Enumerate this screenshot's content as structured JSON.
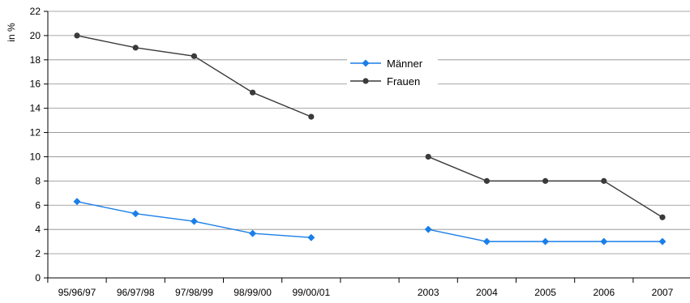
{
  "chart_data": {
    "type": "line",
    "ylabel": "in %",
    "ylim": [
      0,
      22
    ],
    "y_ticks": [
      0,
      2,
      4,
      6,
      8,
      10,
      12,
      14,
      16,
      18,
      20,
      22
    ],
    "categories": [
      "95/96/97",
      "96/97/98",
      "97/98/99",
      "98/99/00",
      "99/00/01",
      "",
      "2003",
      "2004",
      "2005",
      "2006",
      "2007"
    ],
    "grid": "horizontal",
    "legend_position": "top-center",
    "series": [
      {
        "name": "Männer",
        "color": "#1a7fe8",
        "marker": "diamond",
        "segments": [
          [
            6.3,
            5.3,
            4.67,
            3.67,
            3.33
          ],
          [
            4,
            3,
            3,
            3,
            3
          ]
        ]
      },
      {
        "name": "Frauen",
        "color": "#3a3a3a",
        "marker": "circle",
        "segments": [
          [
            20,
            19,
            18.3,
            15.3,
            13.3
          ],
          [
            10,
            8,
            8,
            8,
            5
          ]
        ]
      }
    ]
  }
}
